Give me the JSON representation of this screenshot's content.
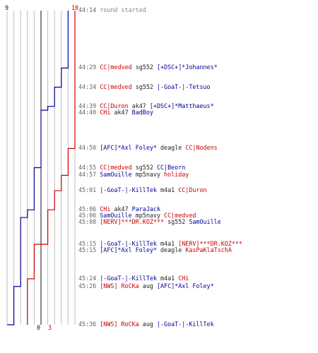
{
  "colors": {
    "blue": "#000099",
    "red": "#cc0000",
    "grid": "#bdbdbd",
    "axis": "#111111"
  },
  "scale": {
    "max_count": 10,
    "start_time": "44:14",
    "end_time": "45:36"
  },
  "labels": {
    "top_left": "9",
    "top_right": "10",
    "bottom_blue": "0",
    "bottom_red": "3"
  },
  "events": [
    {
      "time": "44:14",
      "message": "round started"
    },
    {
      "time": "44:29",
      "killer": "CC|medved",
      "kteam": "red",
      "weapon": "sg552",
      "victim": "[+DSC+]*Johannes*",
      "vteam": "blue"
    },
    {
      "time": "44:34",
      "killer": "CC|medved",
      "kteam": "red",
      "weapon": "sg552",
      "victim": "|-GoaT-|-Tetsuo",
      "vteam": "blue"
    },
    {
      "time": "44:39",
      "killer": "CC|Duron",
      "kteam": "red",
      "weapon": "ak47",
      "victim": "[+DSC+]*Matthaeus*",
      "vteam": "blue"
    },
    {
      "time": "44:40",
      "killer": "CHi",
      "kteam": "red",
      "weapon": "ak47",
      "victim": "BadBoy",
      "vteam": "blue"
    },
    {
      "time": "44:50",
      "killer": "[AFC]*Axl Foley*",
      "kteam": "blue",
      "weapon": "deagle",
      "victim": "CC|Nodens",
      "vteam": "red"
    },
    {
      "time": "44:55",
      "killer": "CC|medved",
      "kteam": "red",
      "weapon": "sg552",
      "victim": "CC|Beorn",
      "vteam": "blue"
    },
    {
      "time": "44:57",
      "killer": "SamOuille",
      "kteam": "blue",
      "weapon": "mp5navy",
      "victim": "holiday",
      "vteam": "red"
    },
    {
      "time": "45:01",
      "killer": "|-GoaT-|-KillTek",
      "kteam": "blue",
      "weapon": "m4a1",
      "victim": "CC|Duron",
      "vteam": "red"
    },
    {
      "time": "45:06",
      "killer": "CHi",
      "kteam": "red",
      "weapon": "ak47",
      "victim": "ParaJack",
      "vteam": "blue"
    },
    {
      "time": "45:06",
      "killer": "SamOuille",
      "kteam": "blue",
      "weapon": "mp5navy",
      "victim": "CC|medved",
      "vteam": "red"
    },
    {
      "time": "45:08",
      "killer": "[NERV]***DR.KOZ***",
      "kteam": "red",
      "weapon": "sg552",
      "victim": "SamOuille",
      "vteam": "blue"
    },
    {
      "time": "45:15",
      "killer": "|-GoaT-|-KillTek",
      "kteam": "blue",
      "weapon": "m4a1",
      "victim": "[NERV]***DR.KOZ***",
      "vteam": "red"
    },
    {
      "time": "45:15",
      "killer": "[AFC]*Axl Foley*",
      "kteam": "blue",
      "weapon": "deagle",
      "victim": "KasPaKlaTschA",
      "vteam": "red"
    },
    {
      "time": "45:24",
      "killer": "|-GoaT-|-KillTek",
      "kteam": "blue",
      "weapon": "m4a1",
      "victim": "CHi",
      "vteam": "red"
    },
    {
      "time": "45:26",
      "killer": "[NWS] RoCKa",
      "kteam": "red",
      "weapon": "aug",
      "victim": "[AFC]*Axl Foley*",
      "vteam": "blue"
    },
    {
      "time": "45:36",
      "killer": "[NWS] RoCKa",
      "kteam": "red",
      "weapon": "aug",
      "victim": "|-GoaT-|-KillTek",
      "vteam": "blue"
    }
  ]
}
